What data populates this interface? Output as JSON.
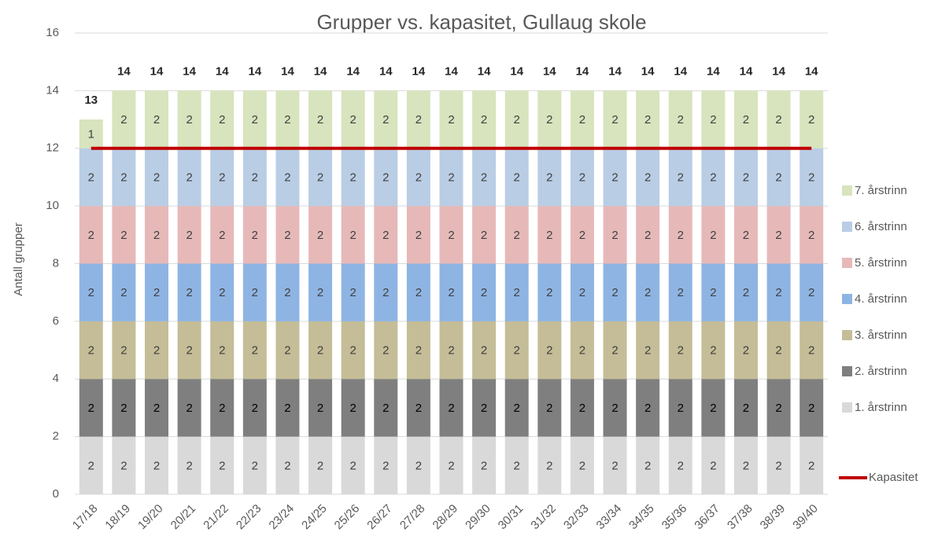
{
  "chart_data": {
    "type": "stacked_bar",
    "title": "Grupper vs. kapasitet, Gullaug skole",
    "y_label": "Antall grupper",
    "categories": [
      "17/18",
      "18/19",
      "19/20",
      "20/21",
      "21/22",
      "22/23",
      "23/24",
      "24/25",
      "25/26",
      "26/27",
      "27/28",
      "28/29",
      "29/30",
      "30/31",
      "31/32",
      "32/33",
      "33/34",
      "34/35",
      "35/36",
      "36/37",
      "37/38",
      "38/39",
      "39/40"
    ],
    "series": [
      {
        "name": "1. årstrinn",
        "color": "#d9d9d9",
        "values": [
          2,
          2,
          2,
          2,
          2,
          2,
          2,
          2,
          2,
          2,
          2,
          2,
          2,
          2,
          2,
          2,
          2,
          2,
          2,
          2,
          2,
          2,
          2
        ]
      },
      {
        "name": "2. årstrinn",
        "color": "#7f7f7f",
        "values": [
          2,
          2,
          2,
          2,
          2,
          2,
          2,
          2,
          2,
          2,
          2,
          2,
          2,
          2,
          2,
          2,
          2,
          2,
          2,
          2,
          2,
          2,
          2
        ]
      },
      {
        "name": "3. årstrinn",
        "color": "#c4bd97",
        "values": [
          2,
          2,
          2,
          2,
          2,
          2,
          2,
          2,
          2,
          2,
          2,
          2,
          2,
          2,
          2,
          2,
          2,
          2,
          2,
          2,
          2,
          2,
          2
        ]
      },
      {
        "name": "4. årstrinn",
        "color": "#8eb4e3",
        "values": [
          2,
          2,
          2,
          2,
          2,
          2,
          2,
          2,
          2,
          2,
          2,
          2,
          2,
          2,
          2,
          2,
          2,
          2,
          2,
          2,
          2,
          2,
          2
        ]
      },
      {
        "name": "5. årstrinn",
        "color": "#e6b9b8",
        "values": [
          2,
          2,
          2,
          2,
          2,
          2,
          2,
          2,
          2,
          2,
          2,
          2,
          2,
          2,
          2,
          2,
          2,
          2,
          2,
          2,
          2,
          2,
          2
        ]
      },
      {
        "name": "6. årstrinn",
        "color": "#b9cde5",
        "values": [
          2,
          2,
          2,
          2,
          2,
          2,
          2,
          2,
          2,
          2,
          2,
          2,
          2,
          2,
          2,
          2,
          2,
          2,
          2,
          2,
          2,
          2,
          2
        ]
      },
      {
        "name": "7. årstrinn",
        "color": "#d7e4bd",
        "values": [
          1,
          2,
          2,
          2,
          2,
          2,
          2,
          2,
          2,
          2,
          2,
          2,
          2,
          2,
          2,
          2,
          2,
          2,
          2,
          2,
          2,
          2,
          2
        ]
      },
      {
        "name": "Kapasitet",
        "color": "#c00000",
        "type": "line",
        "values": [
          12,
          12,
          12,
          12,
          12,
          12,
          12,
          12,
          12,
          12,
          12,
          12,
          12,
          12,
          12,
          12,
          12,
          12,
          12,
          12,
          12,
          12,
          12
        ]
      }
    ],
    "totals": [
      13,
      14,
      14,
      14,
      14,
      14,
      14,
      14,
      14,
      14,
      14,
      14,
      14,
      14,
      14,
      14,
      14,
      14,
      14,
      14,
      14,
      14,
      14
    ],
    "ylim": [
      0,
      16
    ],
    "yticks": [
      0,
      2,
      4,
      6,
      8,
      10,
      12,
      14,
      16
    ],
    "grid": true,
    "legend": "right"
  }
}
